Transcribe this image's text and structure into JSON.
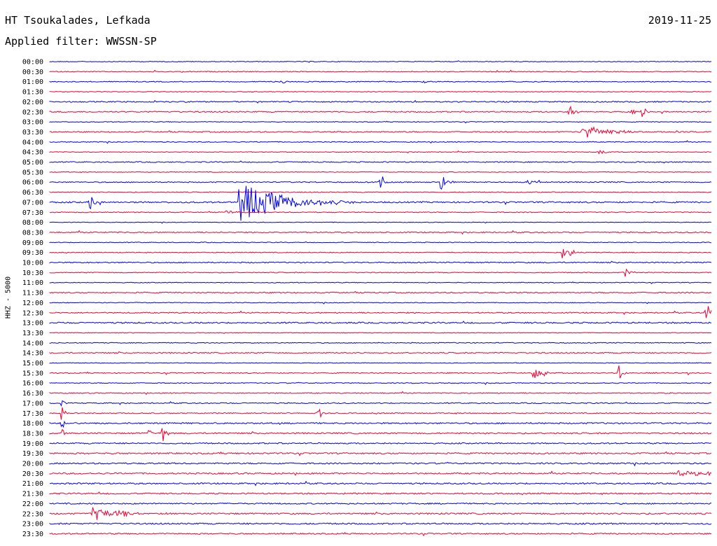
{
  "header": {
    "station": "HT Tsoukalades, Lefkada",
    "date": "2019-11-25",
    "filter_label": "Applied filter: WWSSN-SP",
    "channel_label": "HHZ - 5000"
  },
  "colors": {
    "even_trace": "#0000ee",
    "odd_trace": "#ee0033",
    "background": "#ffffff"
  },
  "chart_data": {
    "type": "helicorder",
    "title": "HT Tsoukalades, Lefkada",
    "date": "2019-11-25",
    "filter": "WWSSN-SP",
    "ylabel": "HHZ - 5000",
    "trace_length_minutes": 30,
    "rows": [
      {
        "time": "00:00",
        "noise": 0.5,
        "events": []
      },
      {
        "time": "00:30",
        "noise": 0.6,
        "events": []
      },
      {
        "time": "01:00",
        "noise": 0.6,
        "events": [
          {
            "t": 0.35,
            "amp": 4,
            "dur": 0.006
          },
          {
            "t": 0.565,
            "amp": 4,
            "dur": 0.004
          }
        ]
      },
      {
        "time": "01:30",
        "noise": 0.5,
        "events": []
      },
      {
        "time": "02:00",
        "noise": 0.8,
        "events": []
      },
      {
        "time": "02:30",
        "noise": 0.8,
        "events": [
          {
            "t": 0.785,
            "amp": 18,
            "dur": 0.006
          },
          {
            "t": 0.88,
            "amp": 6,
            "dur": 0.004
          },
          {
            "t": 0.895,
            "amp": 12,
            "dur": 0.005
          }
        ]
      },
      {
        "time": "03:00",
        "noise": 0.5,
        "events": []
      },
      {
        "time": "03:30",
        "noise": 0.8,
        "events": [
          {
            "t": 0.805,
            "amp": 12,
            "dur": 0.03
          }
        ]
      },
      {
        "time": "04:00",
        "noise": 0.6,
        "events": []
      },
      {
        "time": "04:30",
        "noise": 0.5,
        "events": [
          {
            "t": 0.83,
            "amp": 3,
            "dur": 0.01
          }
        ]
      },
      {
        "time": "05:00",
        "noise": 0.7,
        "events": []
      },
      {
        "time": "05:30",
        "noise": 0.5,
        "events": []
      },
      {
        "time": "06:00",
        "noise": 0.7,
        "events": [
          {
            "t": 0.5,
            "amp": 18,
            "dur": 0.004
          },
          {
            "t": 0.59,
            "amp": 14,
            "dur": 0.008
          },
          {
            "t": 0.72,
            "amp": 3,
            "dur": 0.02
          }
        ]
      },
      {
        "time": "06:30",
        "noise": 0.6,
        "events": []
      },
      {
        "time": "07:00",
        "noise": 1.0,
        "events": [
          {
            "t": 0.06,
            "amp": 16,
            "dur": 0.006
          },
          {
            "t": 0.285,
            "amp": 30,
            "dur": 0.06
          }
        ]
      },
      {
        "time": "07:30",
        "noise": 0.6,
        "events": [
          {
            "t": 0.265,
            "amp": 3,
            "dur": 0.015
          }
        ]
      },
      {
        "time": "08:00",
        "noise": 0.4,
        "events": []
      },
      {
        "time": "08:30",
        "noise": 0.8,
        "events": []
      },
      {
        "time": "09:00",
        "noise": 0.5,
        "events": []
      },
      {
        "time": "09:30",
        "noise": 0.6,
        "events": [
          {
            "t": 0.775,
            "amp": 14,
            "dur": 0.012
          }
        ]
      },
      {
        "time": "10:00",
        "noise": 0.8,
        "events": []
      },
      {
        "time": "10:30",
        "noise": 0.6,
        "events": [
          {
            "t": 0.87,
            "amp": 9,
            "dur": 0.006
          }
        ]
      },
      {
        "time": "11:00",
        "noise": 0.5,
        "events": []
      },
      {
        "time": "11:30",
        "noise": 0.8,
        "events": []
      },
      {
        "time": "12:00",
        "noise": 0.5,
        "events": []
      },
      {
        "time": "12:30",
        "noise": 0.8,
        "events": [
          {
            "t": 0.99,
            "amp": 14,
            "dur": 0.03
          }
        ]
      },
      {
        "time": "13:00",
        "noise": 1.0,
        "events": []
      },
      {
        "time": "13:30",
        "noise": 0.5,
        "events": []
      },
      {
        "time": "14:00",
        "noise": 0.6,
        "events": []
      },
      {
        "time": "14:30",
        "noise": 0.8,
        "events": []
      },
      {
        "time": "15:00",
        "noise": 0.5,
        "events": []
      },
      {
        "time": "15:30",
        "noise": 0.7,
        "events": [
          {
            "t": 0.73,
            "amp": 18,
            "dur": 0.006
          },
          {
            "t": 0.745,
            "amp": 14,
            "dur": 0.004
          },
          {
            "t": 0.86,
            "amp": 14,
            "dur": 0.004
          }
        ]
      },
      {
        "time": "16:00",
        "noise": 0.6,
        "events": []
      },
      {
        "time": "16:30",
        "noise": 0.7,
        "events": []
      },
      {
        "time": "17:00",
        "noise": 0.7,
        "events": [
          {
            "t": 0.018,
            "amp": 8,
            "dur": 0.003
          }
        ]
      },
      {
        "time": "17:30",
        "noise": 0.7,
        "events": [
          {
            "t": 0.018,
            "amp": 18,
            "dur": 0.003
          },
          {
            "t": 0.405,
            "amp": 12,
            "dur": 0.006
          }
        ]
      },
      {
        "time": "18:00",
        "noise": 1.0,
        "events": [
          {
            "t": 0.018,
            "amp": 14,
            "dur": 0.003
          }
        ]
      },
      {
        "time": "18:30",
        "noise": 1.0,
        "events": [
          {
            "t": 0.018,
            "amp": 14,
            "dur": 0.003
          },
          {
            "t": 0.15,
            "amp": 10,
            "dur": 0.004
          },
          {
            "t": 0.17,
            "amp": 14,
            "dur": 0.005
          }
        ]
      },
      {
        "time": "19:00",
        "noise": 0.9,
        "events": []
      },
      {
        "time": "19:30",
        "noise": 1.0,
        "events": []
      },
      {
        "time": "20:00",
        "noise": 1.0,
        "events": []
      },
      {
        "time": "20:30",
        "noise": 1.0,
        "events": [
          {
            "t": 0.95,
            "amp": 6,
            "dur": 0.04
          }
        ]
      },
      {
        "time": "21:00",
        "noise": 1.0,
        "events": []
      },
      {
        "time": "21:30",
        "noise": 1.0,
        "events": []
      },
      {
        "time": "22:00",
        "noise": 0.9,
        "events": []
      },
      {
        "time": "22:30",
        "noise": 1.0,
        "events": [
          {
            "t": 0.065,
            "amp": 10,
            "dur": 0.04
          }
        ]
      },
      {
        "time": "23:00",
        "noise": 1.0,
        "events": []
      },
      {
        "time": "23:30",
        "noise": 0.9,
        "events": []
      }
    ]
  }
}
